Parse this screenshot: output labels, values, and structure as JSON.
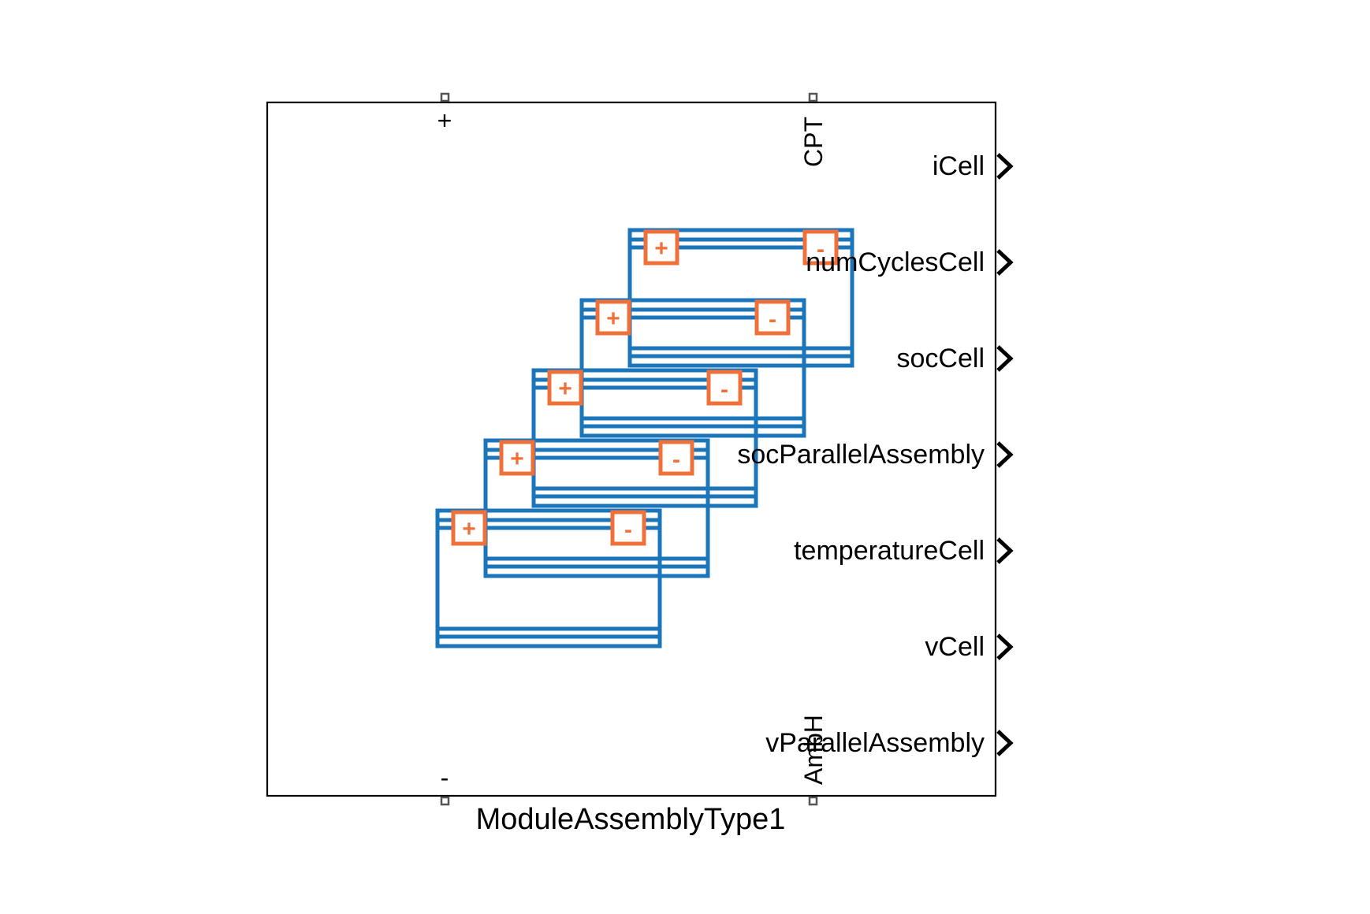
{
  "block": {
    "name": "ModuleAssemblyType1",
    "top_terminals": {
      "positive": "+",
      "thermal": "CPT"
    },
    "bottom_terminals": {
      "negative": "-",
      "ambient": "AmbH"
    },
    "outputs": [
      "iCell",
      "numCyclesCell",
      "socCell",
      "socParallelAssembly",
      "temperatureCell",
      "vCell",
      "vParallelAssembly"
    ]
  },
  "icon": {
    "cell_count": 5,
    "cell_positive_sign": "+",
    "cell_negative_sign": "-",
    "cell_stroke_color": "#1a75bb",
    "terminal_color": "#f0703a"
  }
}
